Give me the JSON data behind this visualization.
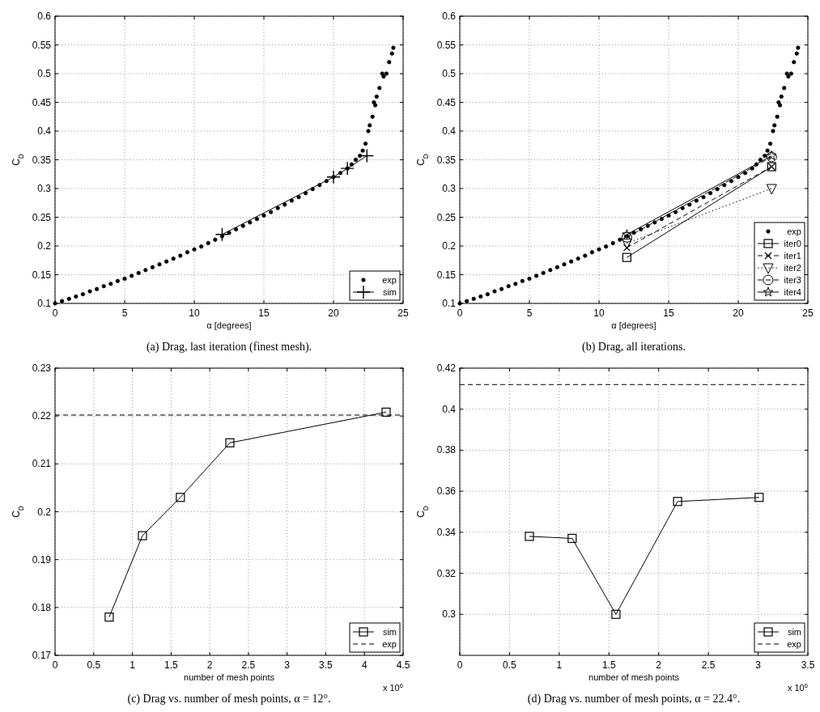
{
  "chart_data": [
    {
      "type": "line",
      "xlabel": "α [degrees]",
      "ylabel": "C$_{D}$",
      "xlim": [
        0,
        25
      ],
      "ylim": [
        0.1,
        0.6
      ],
      "xticks": [
        0,
        5,
        10,
        15,
        20,
        25
      ],
      "yticks": [
        0.1,
        0.15,
        0.2,
        0.25,
        0.3,
        0.35,
        0.4,
        0.45,
        0.5,
        0.55,
        0.6
      ],
      "grid": true,
      "legend": "bottom right",
      "annotations": [
        "(a) Drag, last iteration (finest mesh)."
      ],
      "series": [
        {
          "name": "exp",
          "type": "scatter",
          "color": "#000000",
          "marker": "circle",
          "x": [
            0,
            0.5,
            1,
            1.5,
            2,
            2.5,
            3,
            3.5,
            4,
            4.5,
            5,
            5.5,
            6,
            6.5,
            7,
            7.5,
            8,
            8.5,
            9,
            9.5,
            10,
            10.5,
            11,
            11.5,
            12,
            12.5,
            13,
            13.5,
            14,
            14.5,
            15,
            15.5,
            16,
            16.5,
            17,
            17.5,
            18,
            18.5,
            19,
            19.5,
            20,
            20.5,
            21,
            21.3,
            21.6,
            21.9,
            22.1,
            22.3,
            22.5,
            22.6,
            22.8,
            22.9,
            23.0,
            23.1,
            23.3,
            23.5,
            23.6,
            23.8,
            24.0,
            24.2,
            24.3
          ],
          "values": [
            0.1,
            0.104,
            0.108,
            0.112,
            0.116,
            0.121,
            0.125,
            0.13,
            0.134,
            0.139,
            0.143,
            0.148,
            0.153,
            0.158,
            0.163,
            0.168,
            0.173,
            0.178,
            0.183,
            0.189,
            0.194,
            0.199,
            0.205,
            0.211,
            0.217,
            0.223,
            0.229,
            0.235,
            0.241,
            0.247,
            0.253,
            0.259,
            0.266,
            0.272,
            0.279,
            0.285,
            0.292,
            0.299,
            0.306,
            0.313,
            0.32,
            0.327,
            0.335,
            0.342,
            0.35,
            0.357,
            0.366,
            0.378,
            0.4,
            0.41,
            0.425,
            0.45,
            0.445,
            0.46,
            0.475,
            0.5,
            0.495,
            0.5,
            0.52,
            0.535,
            0.545
          ]
        },
        {
          "name": "sim",
          "type": "line",
          "color": "#000000",
          "marker": "plus",
          "line_style": "solid",
          "x": [
            12,
            20,
            21,
            22.4
          ],
          "values": [
            0.22,
            0.32,
            0.335,
            0.357
          ]
        }
      ]
    },
    {
      "type": "line",
      "xlabel": "α [degrees]",
      "ylabel": "C$_{D}$",
      "xlim": [
        0,
        25
      ],
      "ylim": [
        0.1,
        0.6
      ],
      "xticks": [
        0,
        5,
        10,
        15,
        20,
        25
      ],
      "yticks": [
        0.1,
        0.15,
        0.2,
        0.25,
        0.3,
        0.35,
        0.4,
        0.45,
        0.5,
        0.55,
        0.6
      ],
      "grid": true,
      "legend": "bottom right",
      "annotations": [
        "(b) Drag, all iterations."
      ],
      "series": [
        {
          "name": "exp",
          "type": "scatter",
          "color": "#000000",
          "marker": "circle",
          "x": [
            0,
            0.5,
            1,
            1.5,
            2,
            2.5,
            3,
            3.5,
            4,
            4.5,
            5,
            5.5,
            6,
            6.5,
            7,
            7.5,
            8,
            8.5,
            9,
            9.5,
            10,
            10.5,
            11,
            11.5,
            12,
            12.5,
            13,
            13.5,
            14,
            14.5,
            15,
            15.5,
            16,
            16.5,
            17,
            17.5,
            18,
            18.5,
            19,
            19.5,
            20,
            20.5,
            21,
            21.3,
            21.6,
            21.9,
            22.1,
            22.3,
            22.5,
            22.6,
            22.8,
            22.9,
            23.0,
            23.1,
            23.3,
            23.5,
            23.6,
            23.8,
            24.0,
            24.2,
            24.3
          ],
          "values": [
            0.1,
            0.104,
            0.108,
            0.112,
            0.116,
            0.121,
            0.125,
            0.13,
            0.134,
            0.139,
            0.143,
            0.148,
            0.153,
            0.158,
            0.163,
            0.168,
            0.173,
            0.178,
            0.183,
            0.189,
            0.194,
            0.199,
            0.205,
            0.211,
            0.217,
            0.223,
            0.229,
            0.235,
            0.241,
            0.247,
            0.253,
            0.259,
            0.266,
            0.272,
            0.279,
            0.285,
            0.292,
            0.299,
            0.306,
            0.313,
            0.32,
            0.327,
            0.335,
            0.342,
            0.35,
            0.357,
            0.366,
            0.378,
            0.4,
            0.41,
            0.425,
            0.45,
            0.445,
            0.46,
            0.475,
            0.5,
            0.495,
            0.5,
            0.52,
            0.535,
            0.545
          ]
        },
        {
          "name": "iter0",
          "type": "line",
          "color": "#000000",
          "marker": "square",
          "line_style": "solid",
          "x": [
            12,
            22.4
          ],
          "values": [
            0.18,
            0.338
          ]
        },
        {
          "name": "iter1",
          "type": "line",
          "color": "#000000",
          "marker": "cross",
          "line_style": "dashed",
          "x": [
            12,
            22.4
          ],
          "values": [
            0.197,
            0.338
          ]
        },
        {
          "name": "iter2",
          "type": "line",
          "color": "#000000",
          "marker": "triangle",
          "line_style": "dotted",
          "x": [
            12,
            22.4
          ],
          "values": [
            0.205,
            0.3
          ]
        },
        {
          "name": "iter3",
          "type": "line",
          "color": "#000000",
          "marker": "circle",
          "line_style": "dashed",
          "x": [
            12,
            22.4
          ],
          "values": [
            0.215,
            0.355
          ]
        },
        {
          "name": "iter4",
          "type": "line",
          "color": "#000000",
          "marker": "star",
          "line_style": "solid",
          "x": [
            12,
            22.4
          ],
          "values": [
            0.22,
            0.357
          ]
        }
      ]
    },
    {
      "type": "line",
      "xlabel": "number of mesh points",
      "ylabel": "C$_{D}$",
      "xlim": [
        0,
        4.5
      ],
      "ylim": [
        0.17,
        0.23
      ],
      "xticks": [
        0,
        0.5,
        1,
        1.5,
        2,
        2.5,
        3,
        3.5,
        4,
        4.5
      ],
      "yticks": [
        0.17,
        0.18,
        0.19,
        0.2,
        0.21,
        0.22,
        0.23
      ],
      "grid": true,
      "legend": "bottom right",
      "annotations": [
        "x 10$^{6}$",
        "(c) Drag vs. number of mesh points, α = 12°."
      ],
      "ref_lines": [
        {
          "axis": "y",
          "value": 0.2202,
          "label": "exp",
          "color": "#000000",
          "line_style": "dashed"
        }
      ],
      "series": [
        {
          "name": "sim",
          "type": "line",
          "color": "#000000",
          "marker": "square",
          "line_style": "solid",
          "x": [
            0.7,
            1.13,
            1.62,
            2.26,
            4.28
          ],
          "values": [
            0.178,
            0.195,
            0.203,
            0.2144,
            0.2208
          ]
        }
      ]
    },
    {
      "type": "line",
      "xlabel": "number of mesh points",
      "ylabel": "C$_{D}$",
      "xlim": [
        0,
        3.5
      ],
      "ylim": [
        0.28,
        0.42
      ],
      "xticks": [
        0,
        0.5,
        1,
        1.5,
        2,
        2.5,
        3,
        3.5
      ],
      "yticks": [
        0.3,
        0.32,
        0.34,
        0.36,
        0.38,
        0.4,
        0.42
      ],
      "grid": true,
      "legend": "bottom right",
      "annotations": [
        "x 10$^{6}$",
        "(d) Drag vs. number of mesh points, α = 22.4°."
      ],
      "ref_lines": [
        {
          "axis": "y",
          "value": 0.412,
          "label": "exp",
          "color": "#000000",
          "line_style": "dashed"
        }
      ],
      "series": [
        {
          "name": "sim",
          "type": "line",
          "color": "#000000",
          "marker": "square",
          "line_style": "solid",
          "x": [
            0.7,
            1.13,
            1.57,
            2.19,
            3.01
          ],
          "values": [
            0.338,
            0.337,
            0.3,
            0.355,
            0.357
          ]
        }
      ]
    }
  ]
}
